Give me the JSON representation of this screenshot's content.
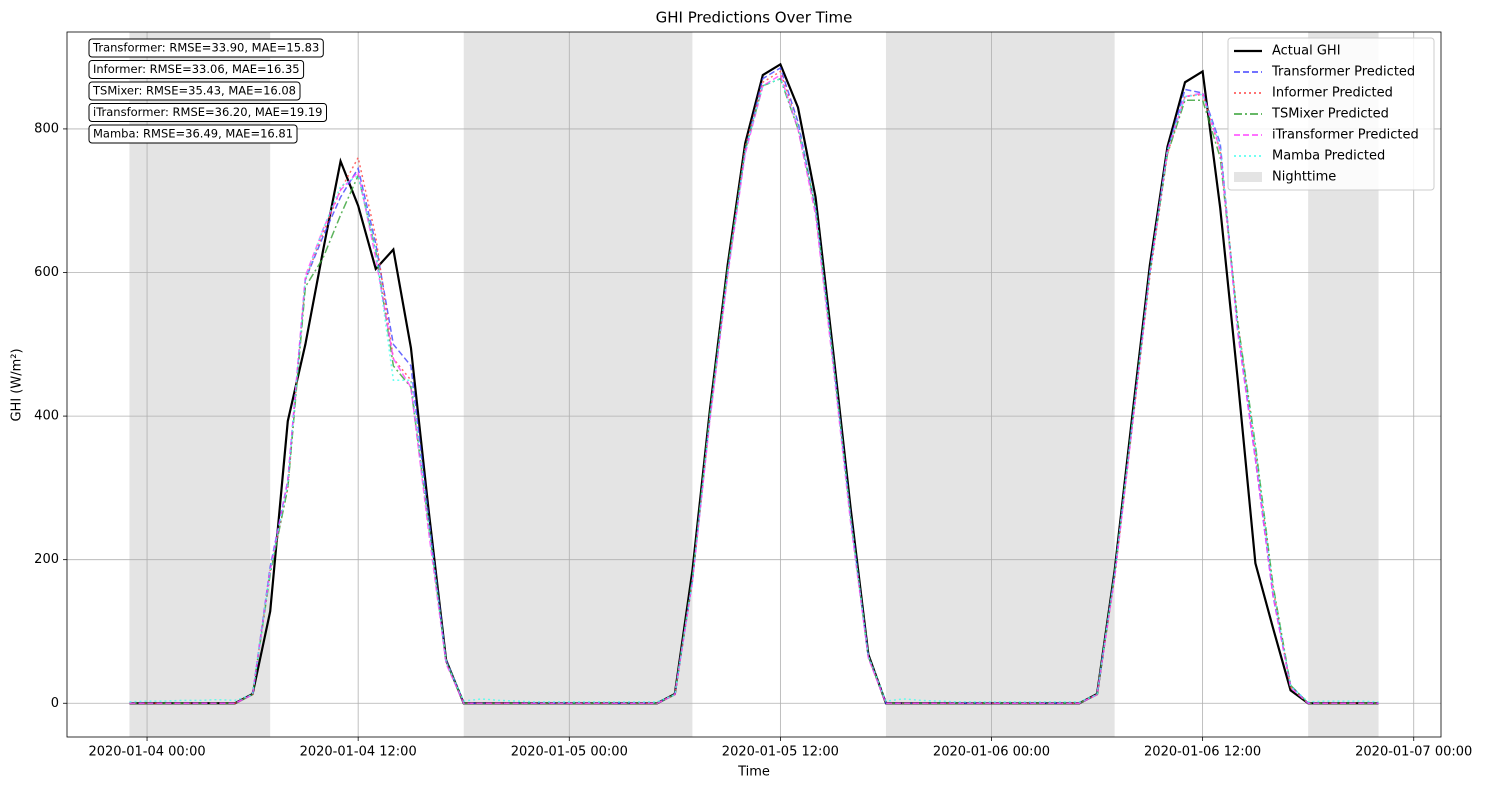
{
  "chart_data": {
    "type": "line",
    "title": "GHI Predictions Over Time",
    "x_label": "Time",
    "y_label": "GHI (W/m²)",
    "xlim": [
      "2020-01-03 19:27",
      "2020-01-07 01:33"
    ],
    "xticks": [
      "2020-01-04 00:00",
      "2020-01-04 12:00",
      "2020-01-05 00:00",
      "2020-01-05 12:00",
      "2020-01-06 00:00",
      "2020-01-06 12:00",
      "2020-01-07 00:00"
    ],
    "ylim": [
      -47,
      935
    ],
    "yticks": [
      0,
      200,
      400,
      600,
      800
    ],
    "grid": true,
    "legend": "upper right",
    "start": "2020-01-03 23:00",
    "step_hours": 1,
    "nighttime_label": "Nighttime",
    "nighttime_color": "#e4e4e4",
    "nighttime": [
      [
        "2020-01-03 23:00",
        "2020-01-04 07:00"
      ],
      [
        "2020-01-04 18:00",
        "2020-01-05 07:00"
      ],
      [
        "2020-01-05 18:00",
        "2020-01-06 07:00"
      ],
      [
        "2020-01-06 18:00",
        "2020-01-06 22:00"
      ]
    ],
    "annotations": [
      "Transformer: RMSE=33.90, MAE=15.83",
      "Informer: RMSE=33.06, MAE=16.35",
      "TSMixer: RMSE=35.43, MAE=16.08",
      "iTransformer: RMSE=36.20, MAE=19.19",
      "Mamba: RMSE=36.49, MAE=16.81"
    ],
    "series": [
      {
        "name": "Actual GHI",
        "color": "#000000",
        "dash": "solid",
        "values": [
          0,
          0,
          0,
          0,
          0,
          0,
          0,
          13,
          128,
          393,
          500,
          630,
          755,
          693,
          605,
          632,
          495,
          270,
          60,
          0,
          0,
          0,
          0,
          0,
          0,
          0,
          0,
          0,
          0,
          0,
          0,
          13,
          185,
          410,
          610,
          780,
          875,
          890,
          830,
          705,
          490,
          270,
          68,
          0,
          0,
          0,
          0,
          0,
          0,
          0,
          0,
          0,
          0,
          0,
          0,
          13,
          185,
          400,
          610,
          775,
          865,
          880,
          690,
          450,
          195,
          105,
          18,
          0,
          0,
          0,
          0,
          0
        ]
      },
      {
        "name": "Transformer Predicted",
        "color": "#4444ff",
        "dash": "dashed",
        "values": [
          0,
          0,
          0,
          0,
          0,
          0,
          0,
          12,
          190,
          310,
          590,
          650,
          705,
          745,
          640,
          500,
          470,
          260,
          60,
          0,
          0,
          0,
          0,
          0,
          0,
          0,
          0,
          0,
          0,
          0,
          0,
          12,
          170,
          400,
          600,
          770,
          870,
          885,
          810,
          690,
          480,
          260,
          65,
          0,
          0,
          0,
          0,
          0,
          0,
          0,
          0,
          0,
          0,
          0,
          0,
          12,
          180,
          390,
          600,
          770,
          855,
          850,
          780,
          520,
          340,
          150,
          25,
          0,
          0,
          0,
          0,
          0
        ]
      },
      {
        "name": "Informer Predicted",
        "color": "#ff4444",
        "dash": "dotted",
        "values": [
          0,
          0,
          0,
          0,
          0,
          0,
          0,
          12,
          185,
          300,
          590,
          655,
          715,
          760,
          650,
          480,
          450,
          250,
          58,
          0,
          0,
          0,
          0,
          0,
          0,
          0,
          0,
          0,
          0,
          0,
          0,
          12,
          170,
          400,
          600,
          775,
          865,
          880,
          805,
          685,
          475,
          255,
          65,
          0,
          0,
          0,
          0,
          0,
          0,
          0,
          0,
          0,
          0,
          0,
          0,
          12,
          175,
          385,
          595,
          765,
          845,
          848,
          770,
          530,
          350,
          160,
          22,
          0,
          0,
          0,
          0,
          0
        ]
      },
      {
        "name": "TSMixer Predicted",
        "color": "#33a033",
        "dash": "dashdot",
        "values": [
          0,
          0,
          0,
          0,
          0,
          0,
          0,
          12,
          180,
          300,
          580,
          620,
          680,
          735,
          630,
          470,
          440,
          250,
          58,
          0,
          0,
          0,
          0,
          0,
          0,
          0,
          0,
          0,
          0,
          0,
          0,
          12,
          175,
          405,
          605,
          770,
          860,
          870,
          800,
          690,
          480,
          258,
          65,
          0,
          0,
          0,
          0,
          0,
          0,
          0,
          0,
          0,
          0,
          0,
          0,
          12,
          180,
          390,
          600,
          765,
          840,
          840,
          760,
          530,
          360,
          165,
          25,
          0,
          0,
          0,
          0,
          0
        ]
      },
      {
        "name": "iTransformer Predicted",
        "color": "#ff44ff",
        "dash": "dashed",
        "values": [
          0,
          0,
          0,
          0,
          0,
          0,
          0,
          12,
          185,
          310,
          595,
          660,
          715,
          740,
          620,
          480,
          440,
          240,
          55,
          0,
          0,
          0,
          0,
          0,
          0,
          0,
          0,
          0,
          0,
          0,
          0,
          12,
          170,
          395,
          595,
          765,
          860,
          875,
          800,
          680,
          470,
          250,
          63,
          0,
          0,
          0,
          0,
          0,
          0,
          0,
          0,
          0,
          0,
          0,
          0,
          12,
          175,
          385,
          600,
          770,
          845,
          850,
          770,
          515,
          340,
          150,
          22,
          0,
          0,
          0,
          0,
          0
        ]
      },
      {
        "name": "Mamba Predicted",
        "color": "#44ffee",
        "dash": "dotted",
        "values": [
          2,
          3,
          3,
          4,
          4,
          5,
          4,
          12,
          185,
          305,
          590,
          660,
          720,
          735,
          630,
          450,
          450,
          250,
          58,
          3,
          6,
          4,
          3,
          2,
          2,
          2,
          2,
          2,
          2,
          2,
          2,
          12,
          170,
          400,
          600,
          770,
          860,
          870,
          805,
          690,
          475,
          255,
          66,
          3,
          6,
          4,
          3,
          2,
          2,
          2,
          2,
          2,
          2,
          2,
          2,
          12,
          180,
          390,
          600,
          770,
          845,
          848,
          775,
          525,
          355,
          160,
          24,
          2,
          3,
          3,
          3,
          2
        ]
      }
    ]
  }
}
